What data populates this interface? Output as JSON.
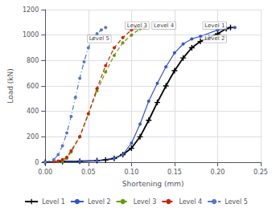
{
  "chart_data": {
    "type": "line",
    "xlabel": "Shortening (mm)",
    "ylabel": "Load (kN)",
    "xlim": [
      0.0,
      0.25
    ],
    "ylim": [
      0,
      1200
    ],
    "xticks": [
      {
        "value": 0.0,
        "label": "0.00"
      },
      {
        "value": 0.05,
        "label": "0.05"
      },
      {
        "value": 0.1,
        "label": "0.10"
      },
      {
        "value": 0.15,
        "label": "0.15"
      },
      {
        "value": 0.2,
        "label": "0.20"
      },
      {
        "value": 0.25,
        "label": "0.25"
      }
    ],
    "yticks": [
      0,
      200,
      400,
      600,
      800,
      1000,
      1200
    ],
    "grid": true,
    "legend": "bottom",
    "series": [
      {
        "name": "Level 1",
        "color": "#000000",
        "line_style": "solid",
        "marker": "plus",
        "x": [
          0.0,
          0.02,
          0.04,
          0.06,
          0.07,
          0.08,
          0.09,
          0.1,
          0.11,
          0.12,
          0.13,
          0.14,
          0.15,
          0.16,
          0.17,
          0.18,
          0.19,
          0.2,
          0.21,
          0.215
        ],
        "values": [
          0,
          5,
          8,
          12,
          18,
          30,
          60,
          110,
          200,
          330,
          470,
          600,
          720,
          820,
          900,
          950,
          980,
          1010,
          1050,
          1060
        ]
      },
      {
        "name": "Level 2",
        "color": "#3355cc",
        "line_style": "solid",
        "marker": "circle",
        "x": [
          0.0,
          0.02,
          0.04,
          0.06,
          0.08,
          0.09,
          0.1,
          0.11,
          0.12,
          0.13,
          0.14,
          0.15,
          0.16,
          0.17,
          0.18,
          0.2,
          0.22
        ],
        "values": [
          0,
          5,
          8,
          12,
          30,
          60,
          150,
          300,
          480,
          620,
          750,
          860,
          930,
          970,
          990,
          1040,
          1060
        ]
      },
      {
        "name": "Level 3",
        "color": "#669900",
        "line_style": "dashed",
        "marker": "circle",
        "x": [
          0.0,
          0.015,
          0.02,
          0.025,
          0.03,
          0.04,
          0.05,
          0.06,
          0.07,
          0.08,
          0.09,
          0.1,
          0.11,
          0.115
        ],
        "values": [
          0,
          5,
          10,
          30,
          80,
          200,
          380,
          560,
          710,
          840,
          940,
          1000,
          1050,
          1060
        ]
      },
      {
        "name": "Level 4",
        "color": "#cc2200",
        "line_style": "dashed",
        "marker": "circle",
        "x": [
          0.0,
          0.01,
          0.015,
          0.02,
          0.025,
          0.03,
          0.04,
          0.05,
          0.06,
          0.07,
          0.08,
          0.09,
          0.1,
          0.105
        ],
        "values": [
          0,
          5,
          10,
          20,
          40,
          90,
          200,
          380,
          580,
          760,
          900,
          980,
          1040,
          1060
        ]
      },
      {
        "name": "Level 5",
        "color": "#5577cc",
        "line_style": "dashdot",
        "marker": "circle",
        "x": [
          0.0,
          0.01,
          0.015,
          0.02,
          0.025,
          0.03,
          0.035,
          0.04,
          0.045,
          0.05,
          0.055,
          0.06,
          0.065,
          0.07
        ],
        "values": [
          0,
          20,
          60,
          130,
          230,
          360,
          510,
          660,
          790,
          900,
          970,
          1010,
          1040,
          1060
        ]
      }
    ],
    "annotations": [
      {
        "text": "Level 3",
        "x": 0.093,
        "y": 1075
      },
      {
        "text": "Level 4",
        "x": 0.124,
        "y": 1075
      },
      {
        "text": "Level 1",
        "x": 0.183,
        "y": 1075
      },
      {
        "text": "Level 5",
        "x": 0.049,
        "y": 970
      },
      {
        "text": "Level 2",
        "x": 0.183,
        "y": 970
      }
    ]
  }
}
